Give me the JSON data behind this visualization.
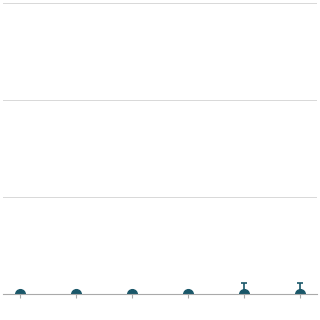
{
  "x_values": [
    0,
    1,
    2,
    3,
    4,
    5
  ],
  "y_values": [
    0.0,
    0.0,
    0.0,
    0.0,
    0.0,
    0.0
  ],
  "y_errors": [
    0.0,
    0.0,
    0.0,
    0.0,
    0.04,
    0.04
  ],
  "dot_color": "#1a5769",
  "dot_size": 7,
  "background_color": "#ffffff",
  "grid_color": "#d8d8d8",
  "xlim": [
    -0.3,
    5.3
  ],
  "ylim": [
    0.0,
    1.0
  ],
  "yticks": [
    0.0,
    0.333,
    0.667,
    1.0
  ],
  "xticks": [
    0,
    1,
    2,
    3,
    4,
    5
  ],
  "xlabel": "",
  "ylabel": "",
  "title": ""
}
